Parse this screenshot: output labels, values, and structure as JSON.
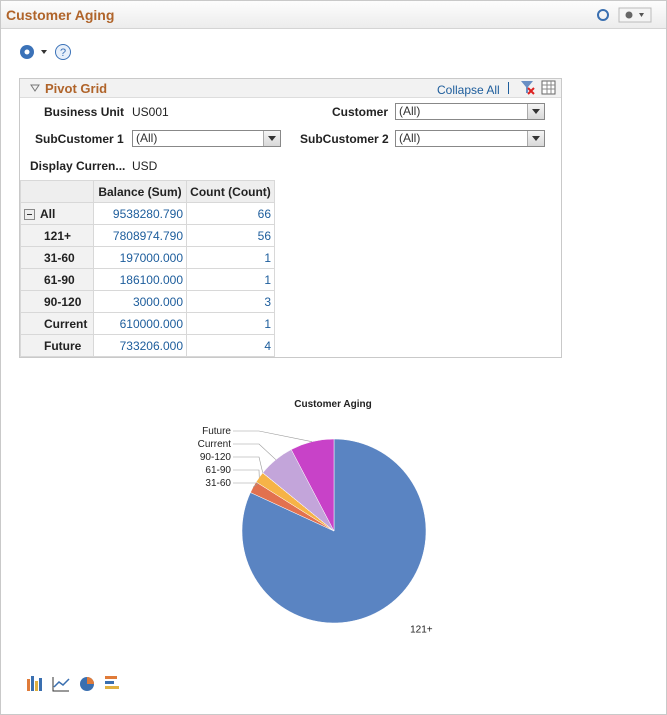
{
  "header": {
    "title": "Customer Aging"
  },
  "pivot_grid": {
    "title": "Pivot Grid",
    "collapse_all": "Collapse All",
    "filters": {
      "business_unit": {
        "label": "Business Unit",
        "value": "US001"
      },
      "customer": {
        "label": "Customer",
        "value": "(All)"
      },
      "subcustomer_1": {
        "label": "SubCustomer 1",
        "value": "(All)"
      },
      "subcustomer_2": {
        "label": "SubCustomer 2",
        "value": "(All)"
      },
      "display_currency": {
        "label": "Display Curren...",
        "value": "USD"
      }
    },
    "table": {
      "columns": [
        "Balance (Sum)",
        "Count (Count)"
      ],
      "rows": [
        [
          "All",
          "9538280.790",
          "66"
        ],
        [
          "121+",
          "7808974.790",
          "56"
        ],
        [
          "31-60",
          "197000.000",
          "1"
        ],
        [
          "61-90",
          "186100.000",
          "1"
        ],
        [
          "90-120",
          "3000.000",
          "3"
        ],
        [
          "Current",
          "610000.000",
          "1"
        ],
        [
          "Future",
          "733206.000",
          "4"
        ]
      ]
    }
  },
  "chart_data": {
    "type": "pie",
    "title": "Customer Aging",
    "categories": [
      "121+",
      "31-60",
      "61-90",
      "90-120",
      "Current",
      "Future"
    ],
    "values": [
      7808974.79,
      197000,
      186100,
      3000,
      610000,
      733206
    ],
    "colors": [
      "#5a84c2",
      "#e2714f",
      "#f6b347",
      "#9cc45c",
      "#c3a5da",
      "#c842c8"
    ]
  }
}
